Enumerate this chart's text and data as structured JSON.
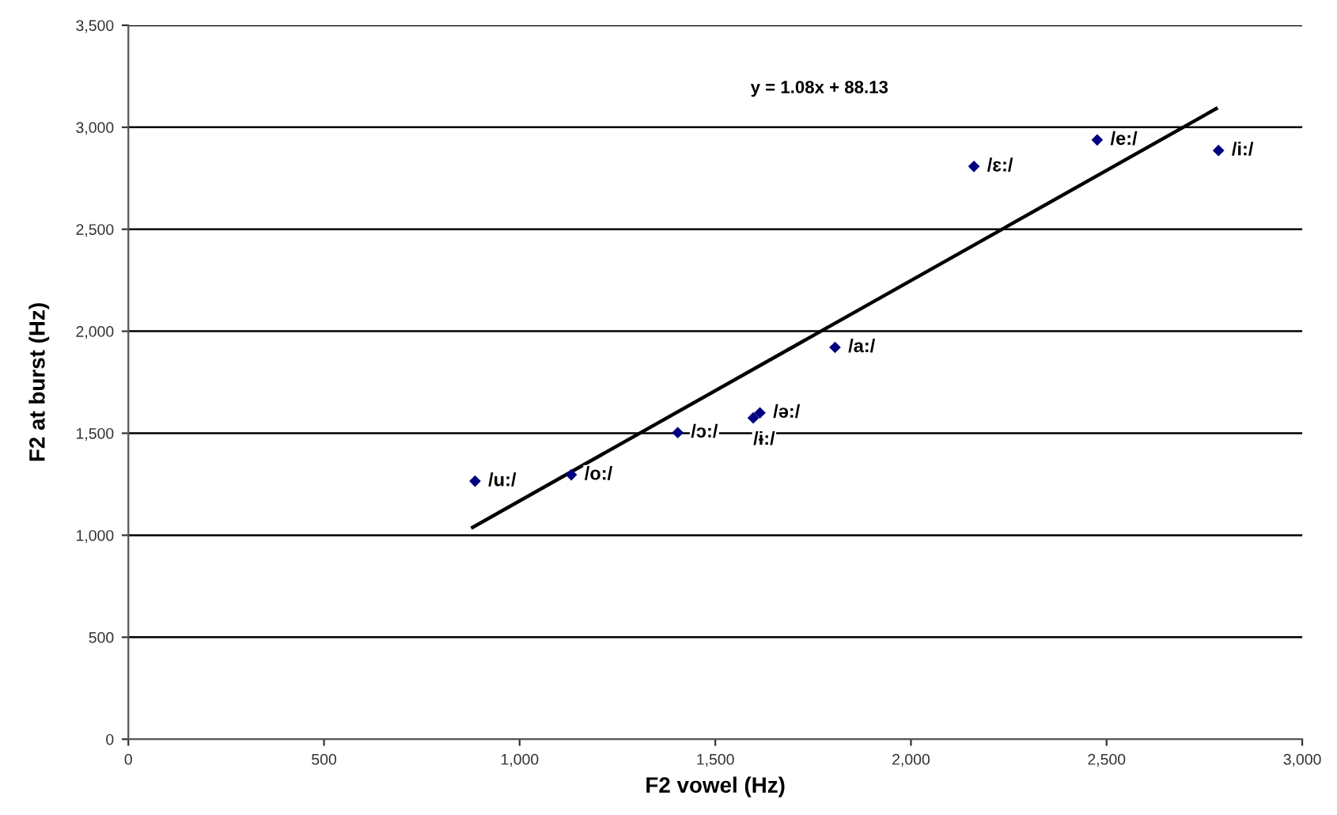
{
  "chart_data": {
    "type": "scatter",
    "xlabel": "F2 vowel (Hz)",
    "ylabel": "F2 at burst (Hz)",
    "series": [
      {
        "color": "#000080",
        "marker": "diamond",
        "x": [
          886,
          1132,
          1404,
          1597,
          1614,
          1806,
          2161,
          2476,
          2786
        ],
        "values": [
          1265,
          1296,
          1503,
          1575,
          1600,
          1921,
          2808,
          2938,
          2886
        ]
      },
      {
        "type": "line",
        "color": "#000000",
        "x": [
          880,
          2780
        ],
        "values": [
          1039,
          3091
        ]
      }
    ],
    "annotations": [
      "y = 1.08x + 88.13",
      {
        "text": "/u:/",
        "x": 886,
        "y": 1265
      },
      {
        "text": "/o:/",
        "x": 1132,
        "y": 1296
      },
      {
        "text": "/ɔ:/",
        "x": 1404,
        "y": 1503
      },
      {
        "text": "/ɨ:/",
        "x": 1597,
        "y": 1575
      },
      {
        "text": "/ə:/",
        "x": 1614,
        "y": 1600
      },
      {
        "text": "/a:/",
        "x": 1806,
        "y": 1921
      },
      {
        "text": "/ɛ:/",
        "x": 2161,
        "y": 2808
      },
      {
        "text": "/e:/",
        "x": 2476,
        "y": 2938
      },
      {
        "text": "/i:/",
        "x": 2786,
        "y": 2886
      }
    ],
    "xlim": [
      0,
      3000
    ],
    "ylim": [
      0,
      3500
    ],
    "xticks": [
      0,
      500,
      {
        "value": 1000,
        "label": "1,000"
      },
      {
        "value": 1500,
        "label": "1,500"
      },
      {
        "value": 2000,
        "label": "2,000"
      },
      {
        "value": 2500,
        "label": "2,500"
      },
      {
        "value": 3000,
        "label": "3,000"
      }
    ],
    "yticks": [
      0,
      500,
      {
        "value": 1000,
        "label": "1,000"
      },
      {
        "value": 1500,
        "label": "1,500"
      },
      {
        "value": 2000,
        "label": "2,000"
      },
      {
        "value": 2500,
        "label": "2,500"
      },
      {
        "value": 3000,
        "label": "3,000"
      },
      {
        "value": 3500,
        "label": "3,500"
      }
    ],
    "grid": "y",
    "legend": false
  }
}
